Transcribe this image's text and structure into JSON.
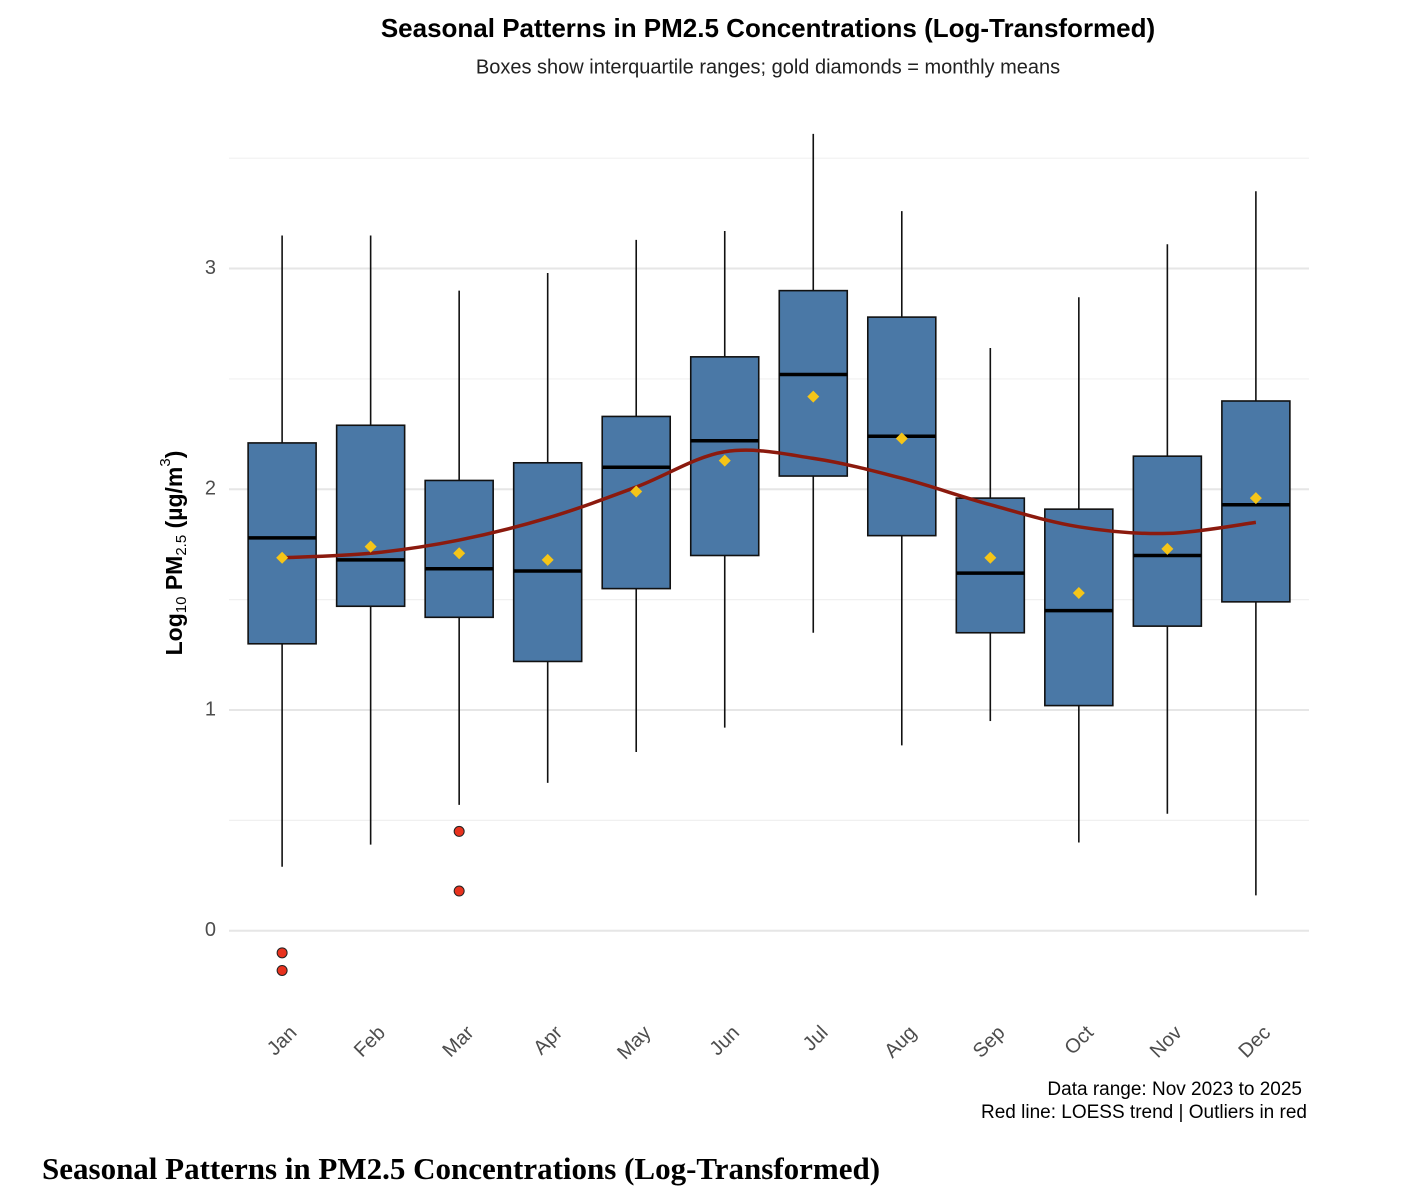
{
  "chart_data": {
    "type": "box",
    "title": "Seasonal Patterns in PM2.5 Concentrations (Log-Transformed)",
    "subtitle": "Boxes show interquartile ranges; gold diamonds = monthly means",
    "y_label": [
      "Log",
      "10",
      " PM",
      "2.5",
      " (µg/m",
      "3",
      ")"
    ],
    "caption": [
      "Data range: Nov 2023 to 2025",
      "Red line: LOESS trend | Outliers in red"
    ],
    "categories": [
      "Jan",
      "Feb",
      "Mar",
      "Apr",
      "May",
      "Jun",
      "Jul",
      "Aug",
      "Sep",
      "Oct",
      "Nov",
      "Dec"
    ],
    "whisker_low": [
      0.29,
      0.39,
      0.57,
      0.67,
      0.81,
      0.92,
      1.35,
      0.84,
      0.95,
      0.4,
      0.53,
      0.16
    ],
    "q1": [
      1.3,
      1.47,
      1.42,
      1.22,
      1.55,
      1.7,
      2.06,
      1.79,
      1.35,
      1.02,
      1.38,
      1.49
    ],
    "median": [
      1.78,
      1.68,
      1.64,
      1.63,
      2.1,
      2.22,
      2.52,
      2.24,
      1.62,
      1.45,
      1.7,
      1.93
    ],
    "q3": [
      2.21,
      2.29,
      2.04,
      2.12,
      2.33,
      2.6,
      2.9,
      2.78,
      1.96,
      1.91,
      2.15,
      2.4
    ],
    "whisker_high": [
      3.15,
      3.15,
      2.9,
      2.98,
      3.13,
      3.17,
      3.61,
      3.26,
      2.64,
      2.87,
      3.11,
      3.35
    ],
    "mean": [
      1.69,
      1.74,
      1.71,
      1.68,
      1.99,
      2.13,
      2.42,
      2.23,
      1.69,
      1.53,
      1.73,
      1.96
    ],
    "outliers": [
      [
        -0.1,
        -0.18
      ],
      [],
      [
        0.45,
        0.18
      ],
      [],
      [],
      [],
      [],
      [],
      [],
      [],
      [],
      []
    ],
    "trend": [
      1.69,
      1.71,
      1.77,
      1.87,
      2.01,
      2.17,
      2.14,
      2.05,
      1.93,
      1.83,
      1.8,
      1.85
    ],
    "box_color": "#4a78a6",
    "mean_color": "#f5c518",
    "outlier_color": "#e8321e",
    "trend_color": "#8b1a0e",
    "ylim": [
      -0.35,
      3.75
    ],
    "yticks": [
      0,
      1,
      2,
      3
    ],
    "minor_grid": [
      0.5,
      1.5,
      2.5,
      3.5
    ],
    "grid": true
  },
  "figure_caption": "Seasonal Patterns in PM2.5 Concentrations (Log-Transformed)"
}
